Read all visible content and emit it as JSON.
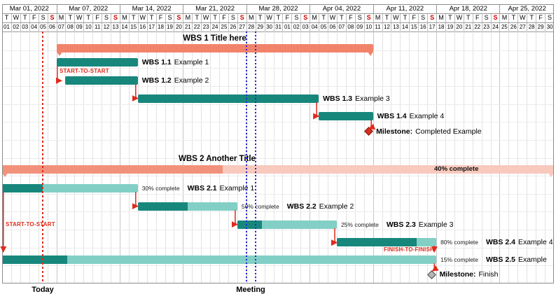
{
  "calendar": {
    "weeks": [
      {
        "label": "Mar 01, 2022",
        "days": 6
      },
      {
        "label": "Mar 07, 2022",
        "days": 7
      },
      {
        "label": "Mar 14, 2022",
        "days": 7
      },
      {
        "label": "Mar 21, 2022",
        "days": 7
      },
      {
        "label": "Mar 28, 2022",
        "days": 7
      },
      {
        "label": "Apr 04, 2022",
        "days": 7
      },
      {
        "label": "Apr 11, 2022",
        "days": 7
      },
      {
        "label": "Apr 18, 2022",
        "days": 7
      },
      {
        "label": "Apr 25, 2022",
        "days": 6
      }
    ],
    "day_letters": "TWTFSSMTWTFSSMTWTFSSMTWTFSSMTWTFSSMTWTFSSMTWTFSSMTWTFSSMTWTFS",
    "day_numbers": [
      "01",
      "02",
      "03",
      "04",
      "05",
      "06",
      "07",
      "08",
      "09",
      "10",
      "11",
      "12",
      "13",
      "14",
      "15",
      "16",
      "17",
      "18",
      "19",
      "20",
      "21",
      "22",
      "23",
      "24",
      "25",
      "26",
      "27",
      "28",
      "29",
      "30",
      "31",
      "01",
      "02",
      "03",
      "04",
      "05",
      "06",
      "07",
      "08",
      "09",
      "10",
      "11",
      "12",
      "13",
      "14",
      "15",
      "16",
      "17",
      "18",
      "19",
      "20",
      "21",
      "22",
      "23",
      "24",
      "25",
      "26",
      "27",
      "28",
      "29",
      "30"
    ],
    "sunday_indices": [
      5,
      12,
      19,
      26,
      33,
      40,
      47,
      54
    ]
  },
  "chart_data": {
    "type": "gantt",
    "timeline": {
      "start": "2022-03-01",
      "end": "2022-04-30",
      "granularity": "day"
    },
    "tasks": [
      {
        "type": "group",
        "code": "WBS 1",
        "name": "Title here",
        "start": "2022-03-07",
        "end": "2022-04-10"
      },
      {
        "type": "task",
        "code": "WBS 1.1",
        "name": "Example 1",
        "start": "2022-03-07",
        "end": "2022-03-15"
      },
      {
        "type": "task",
        "code": "WBS 1.2",
        "name": "Example 2",
        "start": "2022-03-08",
        "end": "2022-03-15"
      },
      {
        "type": "task",
        "code": "WBS 1.3",
        "name": "Example 3",
        "start": "2022-03-16",
        "end": "2022-04-04"
      },
      {
        "type": "task",
        "code": "WBS 1.4",
        "name": "Example 4",
        "start": "2022-04-05",
        "end": "2022-04-10"
      },
      {
        "type": "milestone",
        "code": "Milestone:",
        "name": "Completed Example",
        "date": "2022-04-10",
        "color": "red"
      },
      {
        "type": "group",
        "code": "WBS 2",
        "name": "Another Title",
        "start": "2022-03-01",
        "end": "2022-04-30",
        "progress": 40,
        "progress_label": "40% complete"
      },
      {
        "type": "task",
        "code": "WBS 2.1",
        "name": "Example 1",
        "start": "2022-03-01",
        "end": "2022-03-15",
        "progress": 30,
        "progress_label": "30% complete"
      },
      {
        "type": "task",
        "code": "WBS 2.2",
        "name": "Example 2",
        "start": "2022-03-16",
        "end": "2022-03-26",
        "progress": 50,
        "progress_label": "50% complete"
      },
      {
        "type": "task",
        "code": "WBS 2.3",
        "name": "Example 3",
        "start": "2022-03-27",
        "end": "2022-04-06",
        "progress": 25,
        "progress_label": "25% complete"
      },
      {
        "type": "task",
        "code": "WBS 2.4",
        "name": "Example 4",
        "start": "2022-04-07",
        "end": "2022-04-17",
        "progress": 80,
        "progress_label": "80% complete"
      },
      {
        "type": "task",
        "code": "WBS 2.5",
        "name": "Example",
        "start": "2022-03-01",
        "end": "2022-04-17",
        "progress": 15,
        "progress_label": "15% complete"
      },
      {
        "type": "milestone",
        "code": "Milestone:",
        "name": "Finish",
        "date": "2022-04-17",
        "color": "gray"
      }
    ],
    "dependencies": [
      {
        "from": "WBS 1.1",
        "to": "WBS 1.2",
        "kind": "start-to-start"
      },
      {
        "from": "WBS 1.2",
        "to": "WBS 1.3",
        "kind": "finish-to-start"
      },
      {
        "from": "WBS 1.3",
        "to": "WBS 1.4",
        "kind": "finish-to-start"
      },
      {
        "from": "WBS 1.4",
        "to": "Milestone: Completed Example",
        "kind": "finish-to-start"
      },
      {
        "from": "WBS 2.1",
        "to": "WBS 2.5",
        "kind": "start-to-start"
      },
      {
        "from": "WBS 2.1",
        "to": "WBS 2.2",
        "kind": "finish-to-start"
      },
      {
        "from": "WBS 2.2",
        "to": "WBS 2.3",
        "kind": "finish-to-start"
      },
      {
        "from": "WBS 2.3",
        "to": "WBS 2.4",
        "kind": "finish-to-start"
      },
      {
        "from": "WBS 2.4",
        "to": "WBS 2.5",
        "kind": "finish-to-finish"
      },
      {
        "from": "WBS 2.5",
        "to": "Milestone: Finish",
        "kind": "finish-to-start"
      }
    ],
    "connector_labels": [
      "START-TO-START",
      "START-TO-START",
      "FINISH-TO-FINISH"
    ],
    "markers": {
      "today": {
        "date": "2022-03-05",
        "label": "Today"
      },
      "meeting": {
        "date": "2022-03-28",
        "label": "Meeting"
      }
    }
  },
  "colors": {
    "group_salmon": "#F2836B",
    "group_salmon_mid": "#F2917B",
    "group_salmon_light": "#F8C9BD",
    "task_teal": "#17877C",
    "task_teal_light": "#82CFC5",
    "connector_red": "#DF2B1C",
    "meeting_blue": "#2424D8",
    "sunday_red": "#D40000",
    "milestone_red": "#D6301F",
    "milestone_gray": "#B5B5B5"
  }
}
